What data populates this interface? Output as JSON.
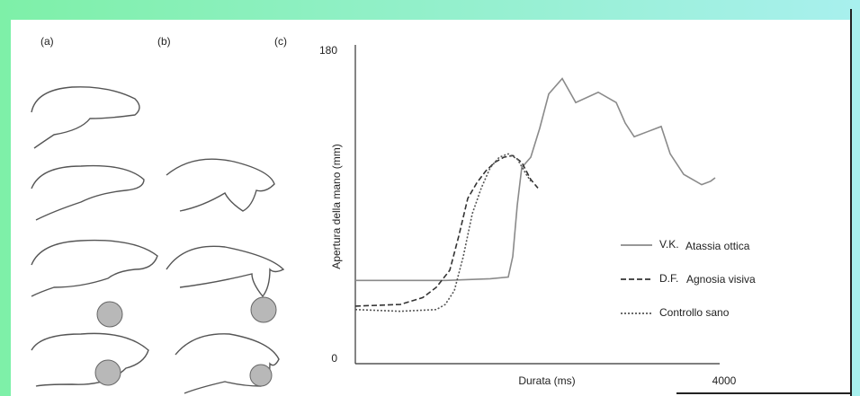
{
  "panel_labels": [
    "(a)",
    "(b)",
    "(c)"
  ],
  "chart_data": {
    "type": "line",
    "xlabel": "Durata (ms)",
    "ylabel": "Apertura della mano (mm)",
    "xlim": [
      0,
      4000
    ],
    "xticks": [
      4000
    ],
    "ylim": [
      0,
      180
    ],
    "yticks": [
      0,
      180
    ],
    "series": [
      {
        "name": "V.K.",
        "color": "#8a8a8a",
        "dash": "solid",
        "x": [
          0,
          500,
          1000,
          1500,
          1700,
          1750,
          1800,
          1850,
          1950,
          2050,
          2150,
          2300,
          2450,
          2700,
          2900,
          3000,
          3100,
          3250,
          3400,
          3500,
          3650,
          3850,
          3950,
          4000
        ],
        "values": [
          46,
          46,
          46,
          47,
          48,
          60,
          90,
          112,
          118,
          135,
          155,
          164,
          150,
          156,
          150,
          138,
          130,
          133,
          136,
          120,
          108,
          102,
          104,
          106
        ]
      },
      {
        "name": "D.F.",
        "color": "#333333",
        "dash": "dashed",
        "x": [
          0,
          500,
          750,
          900,
          1050,
          1150,
          1250,
          1350,
          1450,
          1550,
          1650,
          1750,
          1850,
          1950,
          2030
        ],
        "values": [
          31,
          32,
          36,
          42,
          52,
          72,
          94,
          103,
          110,
          115,
          118,
          119,
          115,
          105,
          100
        ]
      },
      {
        "name": "Controllo sano",
        "color": "#555555",
        "dash": "dotted",
        "x": [
          0,
          500,
          900,
          1000,
          1100,
          1200,
          1300,
          1400,
          1500,
          1600,
          1700,
          1800,
          1900,
          1950
        ],
        "values": [
          29,
          28,
          29,
          32,
          40,
          60,
          85,
          100,
          112,
          118,
          120,
          117,
          108,
          104
        ]
      }
    ],
    "annotations": [
      "Atassia ottica",
      "Agnosia visiva"
    ],
    "annotation_color": "#1a3fb0"
  }
}
